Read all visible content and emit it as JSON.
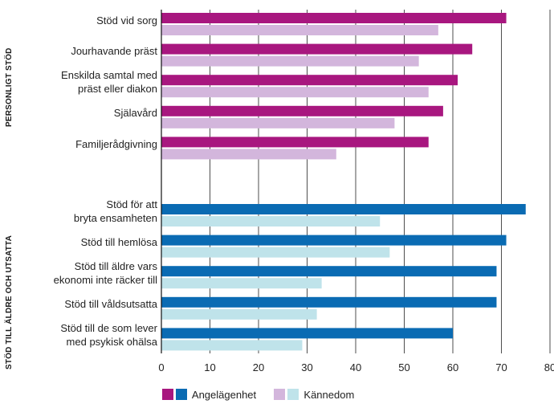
{
  "chart_data": {
    "type": "bar",
    "orientation": "horizontal",
    "groups": [
      {
        "label": "PERSONLIGT STÖD",
        "categories": [
          "Stöd vid sorg",
          "Jourhavande präst",
          "Enskilda samtal med präst eller diakon",
          "Själavård",
          "Familjerådgivning"
        ],
        "category_lines": [
          [
            "Stöd vid sorg"
          ],
          [
            "Jourhavande präst"
          ],
          [
            "Enskilda samtal med",
            "präst eller diakon"
          ],
          [
            "Själavård"
          ],
          [
            "Familjerådgivning"
          ]
        ],
        "series": [
          {
            "name": "Angelägenhet",
            "values": [
              71,
              64,
              61,
              58,
              55
            ],
            "color": "#a8177f"
          },
          {
            "name": "Kännedom",
            "values": [
              57,
              53,
              55,
              48,
              36
            ],
            "color": "#d3b6dc"
          }
        ]
      },
      {
        "label": "STÖD TILL ÄLDRE OCH UTSATTA",
        "categories": [
          "Stöd för att bryta ensamheten",
          "Stöd till hemlösa",
          "Stöd till äldre vars ekonomi inte räcker till",
          "Stöd till våldsutsatta",
          "Stöd till de som lever med psykisk ohälsa"
        ],
        "category_lines": [
          [
            "Stöd för att",
            "bryta ensamheten"
          ],
          [
            "Stöd till hemlösa"
          ],
          [
            "Stöd till äldre vars",
            "ekonomi inte räcker till"
          ],
          [
            "Stöd till våldsutsatta"
          ],
          [
            "Stöd till de som lever",
            "med psykisk ohälsa"
          ]
        ],
        "series": [
          {
            "name": "Angelägenhet",
            "values": [
              75,
              71,
              69,
              69,
              60
            ],
            "color": "#0a6bb3"
          },
          {
            "name": "Kännedom",
            "values": [
              45,
              47,
              33,
              32,
              29
            ],
            "color": "#bfe3ea"
          }
        ]
      }
    ],
    "x_ticks": [
      0,
      10,
      20,
      30,
      40,
      50,
      60,
      70,
      80
    ],
    "xlim": [
      0,
      80
    ],
    "grid": true,
    "legend": {
      "position": "bottom",
      "items": [
        {
          "label": "Angelägenhet",
          "colors": [
            "#a8177f",
            "#0a6bb3"
          ]
        },
        {
          "label": "Kännedom",
          "colors": [
            "#d3b6dc",
            "#bfe3ea"
          ]
        }
      ]
    }
  }
}
